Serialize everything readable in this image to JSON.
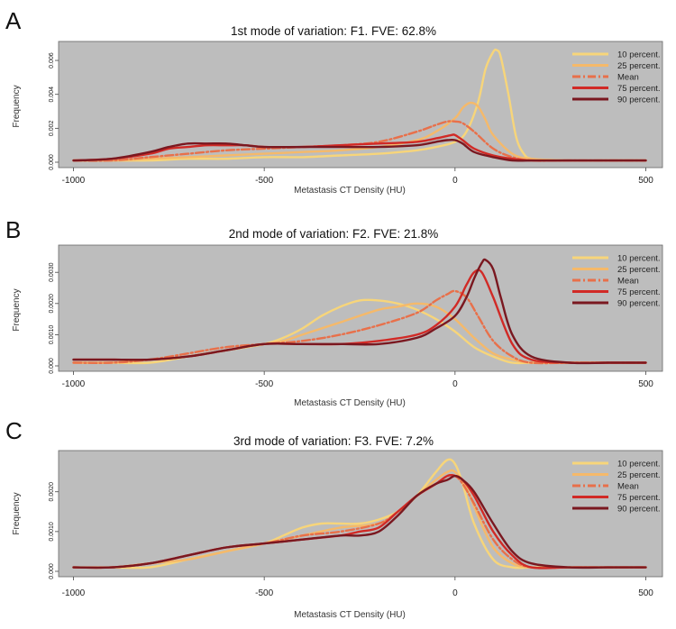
{
  "chart_data": [
    {
      "panel": "A",
      "type": "line",
      "title": "1st mode of variation: F1. FVE: 62.8%",
      "xlabel": "Metastasis CT Density (HU)",
      "ylabel": "Frequency",
      "xlim": [
        -1020,
        520
      ],
      "ylim": [
        0,
        0.0068
      ],
      "xticks": [
        -1000,
        -500,
        0,
        500
      ],
      "yticks": [
        0.0,
        0.002,
        0.004,
        0.006
      ],
      "ytick_labels": [
        "0.000",
        "0.002",
        "0.004",
        "0.006"
      ],
      "legend_position": "top-right",
      "series": [
        {
          "name": "10 percent.",
          "color": "#f7d57a",
          "dash": "solid",
          "x": [
            -1000,
            -900,
            -800,
            -700,
            -600,
            -500,
            -400,
            -300,
            -200,
            -100,
            -50,
            0,
            30,
            60,
            80,
            100,
            110,
            120,
            140,
            160,
            180,
            200,
            250,
            300,
            400,
            500
          ],
          "y": [
            0.0001,
            0.0001,
            0.0001,
            0.0002,
            0.0002,
            0.0003,
            0.0003,
            0.0004,
            0.0005,
            0.0007,
            0.0009,
            0.0012,
            0.0018,
            0.0035,
            0.0055,
            0.0065,
            0.0066,
            0.0062,
            0.004,
            0.0015,
            0.0005,
            0.0002,
            0.0001,
            0.0001,
            0.0001,
            0.0001
          ]
        },
        {
          "name": "25 percent.",
          "color": "#f5b96a",
          "dash": "solid",
          "x": [
            -1000,
            -900,
            -800,
            -700,
            -600,
            -500,
            -400,
            -300,
            -200,
            -100,
            -50,
            0,
            20,
            40,
            60,
            80,
            100,
            150,
            200,
            300,
            400,
            500
          ],
          "y": [
            0.0001,
            0.0001,
            0.0002,
            0.0003,
            0.0004,
            0.0005,
            0.0006,
            0.0007,
            0.0009,
            0.0013,
            0.0018,
            0.0026,
            0.0032,
            0.0035,
            0.0033,
            0.0025,
            0.0016,
            0.0005,
            0.0002,
            0.0001,
            0.0001,
            0.0001
          ]
        },
        {
          "name": "Mean",
          "color": "#e8704a",
          "dash": "dashdot",
          "x": [
            -1000,
            -900,
            -800,
            -700,
            -600,
            -500,
            -400,
            -300,
            -200,
            -100,
            -50,
            -20,
            0,
            20,
            50,
            100,
            150,
            200,
            300,
            400,
            500
          ],
          "y": [
            0.0001,
            0.0001,
            0.0003,
            0.0005,
            0.0007,
            0.0008,
            0.0009,
            0.001,
            0.0012,
            0.0018,
            0.0022,
            0.0024,
            0.0024,
            0.0023,
            0.0018,
            0.0008,
            0.0003,
            0.0001,
            0.0001,
            0.0001,
            0.0001
          ]
        },
        {
          "name": "75 percent.",
          "color": "#d12a26",
          "dash": "solid",
          "x": [
            -1000,
            -900,
            -800,
            -750,
            -700,
            -650,
            -600,
            -550,
            -500,
            -400,
            -300,
            -200,
            -100,
            -50,
            -10,
            0,
            20,
            50,
            100,
            150,
            200,
            300,
            400,
            500
          ],
          "y": [
            0.0001,
            0.0002,
            0.0005,
            0.0008,
            0.0009,
            0.001,
            0.001,
            0.001,
            0.0009,
            0.0009,
            0.001,
            0.0011,
            0.0012,
            0.0014,
            0.0016,
            0.0016,
            0.0013,
            0.0008,
            0.0004,
            0.0002,
            0.0001,
            0.0001,
            0.0001,
            0.0001
          ]
        },
        {
          "name": "90 percent.",
          "color": "#7a1820",
          "dash": "solid",
          "x": [
            -1000,
            -900,
            -800,
            -750,
            -700,
            -650,
            -600,
            -550,
            -500,
            -400,
            -300,
            -200,
            -100,
            -50,
            -20,
            0,
            20,
            50,
            100,
            150,
            200,
            300,
            400,
            500
          ],
          "y": [
            0.0001,
            0.0002,
            0.0006,
            0.0009,
            0.0011,
            0.0011,
            0.0011,
            0.001,
            0.0009,
            0.0009,
            0.0009,
            0.0009,
            0.001,
            0.0012,
            0.0013,
            0.0013,
            0.0011,
            0.0006,
            0.0003,
            0.0001,
            0.0001,
            0.0001,
            0.0001,
            0.0001
          ]
        }
      ]
    },
    {
      "panel": "B",
      "type": "line",
      "title": "2nd mode of variation: F2. FVE: 21.8%",
      "xlabel": "Metastasis CT Density (HU)",
      "ylabel": "Frequency",
      "xlim": [
        -1020,
        520
      ],
      "ylim": [
        0,
        0.0037
      ],
      "xticks": [
        -1000,
        -500,
        0,
        500
      ],
      "yticks": [
        0.0,
        0.001,
        0.002,
        0.003
      ],
      "ytick_labels": [
        "0.000",
        "0.0010",
        "0.0020",
        "0.0030"
      ],
      "legend_position": "top-right",
      "series": [
        {
          "name": "10 percent.",
          "color": "#f7d57a",
          "dash": "solid",
          "x": [
            -1000,
            -900,
            -800,
            -700,
            -600,
            -500,
            -450,
            -400,
            -350,
            -300,
            -250,
            -200,
            -150,
            -100,
            -50,
            0,
            50,
            100,
            150,
            200,
            300,
            400,
            500
          ],
          "y": [
            0.0001,
            0.0001,
            0.0001,
            0.0003,
            0.0005,
            0.0007,
            0.0009,
            0.0012,
            0.0016,
            0.0019,
            0.0021,
            0.0021,
            0.002,
            0.0018,
            0.0015,
            0.0011,
            0.0006,
            0.0003,
            0.0001,
            0.0001,
            0.0001,
            0.0001,
            0.0001
          ]
        },
        {
          "name": "25 percent.",
          "color": "#f5b96a",
          "dash": "solid",
          "x": [
            -1000,
            -900,
            -800,
            -700,
            -600,
            -500,
            -450,
            -400,
            -300,
            -200,
            -150,
            -100,
            -50,
            0,
            50,
            100,
            150,
            200,
            300,
            400,
            500
          ],
          "y": [
            0.0001,
            0.0001,
            0.0002,
            0.0003,
            0.0005,
            0.0007,
            0.0008,
            0.001,
            0.0014,
            0.0018,
            0.0019,
            0.002,
            0.0019,
            0.0015,
            0.0009,
            0.0004,
            0.0002,
            0.0001,
            0.0001,
            0.0001,
            0.0001
          ]
        },
        {
          "name": "Mean",
          "color": "#e8704a",
          "dash": "dashdot",
          "x": [
            -1000,
            -900,
            -800,
            -700,
            -600,
            -500,
            -400,
            -300,
            -200,
            -100,
            -50,
            -20,
            0,
            30,
            60,
            100,
            150,
            200,
            300,
            400,
            500
          ],
          "y": [
            0.0001,
            0.0001,
            0.0002,
            0.0004,
            0.0006,
            0.0007,
            0.0008,
            0.001,
            0.0013,
            0.0017,
            0.0021,
            0.0023,
            0.0024,
            0.0022,
            0.0016,
            0.0008,
            0.0003,
            0.0001,
            0.0001,
            0.0001,
            0.0001
          ]
        },
        {
          "name": "75 percent.",
          "color": "#d12a26",
          "dash": "solid",
          "x": [
            -1000,
            -900,
            -800,
            -700,
            -600,
            -500,
            -400,
            -300,
            -200,
            -100,
            -50,
            0,
            30,
            50,
            70,
            100,
            150,
            200,
            300,
            400,
            500
          ],
          "y": [
            0.0002,
            0.0002,
            0.0002,
            0.0003,
            0.0005,
            0.0007,
            0.0007,
            0.0007,
            0.0008,
            0.001,
            0.0013,
            0.0019,
            0.0026,
            0.003,
            0.003,
            0.0022,
            0.0007,
            0.0002,
            0.0001,
            0.0001,
            0.0001
          ]
        },
        {
          "name": "90 percent.",
          "color": "#7a1820",
          "dash": "solid",
          "x": [
            -1000,
            -900,
            -800,
            -700,
            -600,
            -500,
            -400,
            -300,
            -200,
            -100,
            -50,
            0,
            30,
            50,
            70,
            80,
            100,
            120,
            150,
            200,
            300,
            400,
            500
          ],
          "y": [
            0.0002,
            0.0002,
            0.0002,
            0.0003,
            0.0005,
            0.0007,
            0.0007,
            0.0007,
            0.0007,
            0.0009,
            0.0012,
            0.0016,
            0.0022,
            0.0028,
            0.0033,
            0.0034,
            0.0031,
            0.0022,
            0.001,
            0.0003,
            0.0001,
            0.0001,
            0.0001
          ]
        }
      ]
    },
    {
      "panel": "C",
      "type": "line",
      "title": "3rd mode of variation: F3. FVE: 7.2%",
      "xlabel": "Metastasis CT Density (HU)",
      "ylabel": "Frequency",
      "xlim": [
        -1020,
        520
      ],
      "ylim": [
        0,
        0.0029
      ],
      "xticks": [
        -1000,
        -500,
        0,
        500
      ],
      "yticks": [
        0.0,
        0.001,
        0.002
      ],
      "ytick_labels": [
        "0.000",
        "0.0010",
        "0.0020"
      ],
      "legend_position": "top-right",
      "series": [
        {
          "name": "10 percent.",
          "color": "#f7d57a",
          "dash": "solid",
          "x": [
            -1000,
            -900,
            -800,
            -700,
            -600,
            -500,
            -450,
            -400,
            -350,
            -300,
            -250,
            -200,
            -150,
            -100,
            -50,
            -20,
            0,
            20,
            50,
            100,
            150,
            200,
            300,
            400,
            500
          ],
          "y": [
            0.0001,
            0.0001,
            0.0001,
            0.0003,
            0.0005,
            0.0007,
            0.0009,
            0.0011,
            0.0012,
            0.0012,
            0.0012,
            0.0013,
            0.0015,
            0.0019,
            0.0025,
            0.0028,
            0.0027,
            0.0022,
            0.0012,
            0.0003,
            0.0001,
            0.0001,
            0.0001,
            0.0001,
            0.0001
          ]
        },
        {
          "name": "25 percent.",
          "color": "#f5b96a",
          "dash": "solid",
          "x": [
            -1000,
            -900,
            -800,
            -700,
            -600,
            -500,
            -400,
            -300,
            -200,
            -150,
            -100,
            -50,
            -20,
            0,
            30,
            60,
            100,
            150,
            200,
            300,
            400,
            500
          ],
          "y": [
            0.0001,
            0.0001,
            0.0002,
            0.0003,
            0.0005,
            0.0007,
            0.0009,
            0.0011,
            0.0012,
            0.0015,
            0.0019,
            0.0023,
            0.0025,
            0.0025,
            0.0021,
            0.0014,
            0.0006,
            0.0002,
            0.0001,
            0.0001,
            0.0001,
            0.0001
          ]
        },
        {
          "name": "Mean",
          "color": "#e8704a",
          "dash": "dashdot",
          "x": [
            -1000,
            -900,
            -800,
            -700,
            -600,
            -500,
            -400,
            -300,
            -200,
            -150,
            -100,
            -50,
            -20,
            0,
            20,
            50,
            100,
            150,
            200,
            300,
            400,
            500
          ],
          "y": [
            0.0001,
            0.0001,
            0.0002,
            0.0004,
            0.0006,
            0.0007,
            0.0009,
            0.001,
            0.0012,
            0.0015,
            0.0019,
            0.0022,
            0.0024,
            0.0024,
            0.0022,
            0.0017,
            0.0008,
            0.0003,
            0.0001,
            0.0001,
            0.0001,
            0.0001
          ]
        },
        {
          "name": "75 percent.",
          "color": "#d12a26",
          "dash": "solid",
          "x": [
            -1000,
            -900,
            -800,
            -700,
            -600,
            -500,
            -400,
            -300,
            -250,
            -200,
            -150,
            -100,
            -50,
            -20,
            0,
            20,
            50,
            100,
            150,
            200,
            300,
            400,
            500
          ],
          "y": [
            0.0001,
            0.0001,
            0.0002,
            0.0004,
            0.0006,
            0.0007,
            0.0008,
            0.0009,
            0.001,
            0.0011,
            0.0015,
            0.0019,
            0.0022,
            0.0024,
            0.0024,
            0.0023,
            0.0019,
            0.001,
            0.0004,
            0.0001,
            0.0001,
            0.0001,
            0.0001
          ]
        },
        {
          "name": "90 percent.",
          "color": "#7a1820",
          "dash": "solid",
          "x": [
            -1000,
            -900,
            -800,
            -700,
            -600,
            -500,
            -400,
            -300,
            -250,
            -200,
            -150,
            -100,
            -50,
            -20,
            0,
            20,
            50,
            100,
            150,
            200,
            300,
            400,
            480,
            500
          ],
          "y": [
            0.0001,
            0.0001,
            0.0002,
            0.0004,
            0.0006,
            0.0007,
            0.0008,
            0.0009,
            0.0009,
            0.001,
            0.0014,
            0.0019,
            0.0022,
            0.0023,
            0.0024,
            0.0023,
            0.002,
            0.0012,
            0.0005,
            0.0002,
            0.0001,
            0.0001,
            0.0001,
            0.0001
          ]
        }
      ]
    }
  ]
}
